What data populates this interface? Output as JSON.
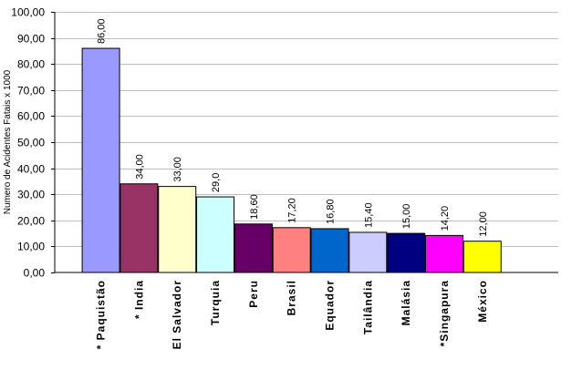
{
  "chart_data": {
    "type": "bar",
    "ylabel": "Numero de Acidentes Fatais x 1000",
    "ylim": [
      0,
      100
    ],
    "y_ticks": [
      "0,00",
      "10,00",
      "20,00",
      "30,00",
      "40,00",
      "50,00",
      "60,00",
      "70,00",
      "80,00",
      "90,00",
      "100,00"
    ],
    "grid": true,
    "legend": "none",
    "categories": [
      "* Paquistão",
      "* India",
      "El Salvador",
      "Turquia",
      "Peru",
      "Brasil",
      "Equador",
      "Tailândia",
      "Malásia",
      "*Singapura",
      "México"
    ],
    "values": [
      86.0,
      34.0,
      33.0,
      29.0,
      18.6,
      17.2,
      16.8,
      15.4,
      15.0,
      14.2,
      12.0
    ],
    "data_labels": [
      "86,00",
      "34,00",
      "33,00",
      "29,0",
      "18,60",
      "17,20",
      "16,80",
      "15,40",
      "15,00",
      "14,20",
      "12,00"
    ],
    "colors": [
      "#9999ff",
      "#993366",
      "#ffffcc",
      "#ccffff",
      "#660066",
      "#ff8080",
      "#0066cc",
      "#ccccff",
      "#000080",
      "#ff00ff",
      "#ffff00"
    ]
  }
}
